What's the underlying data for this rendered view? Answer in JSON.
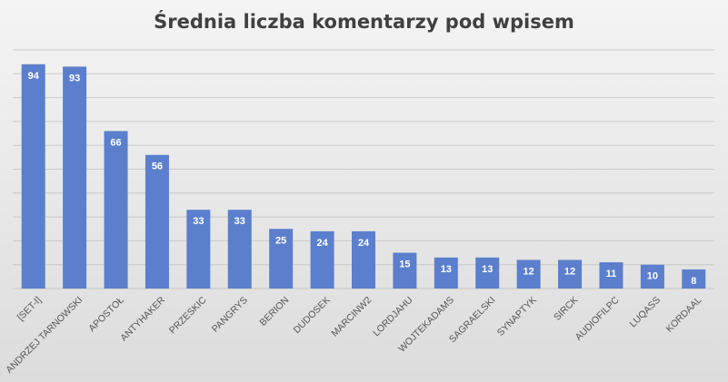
{
  "chart_data": {
    "type": "bar",
    "title": "Średnia liczba komentarzy pod wpisem",
    "categories": [
      "[SET-I]",
      "ANDRZEJ TARNOWSKI",
      "APOSTOŁ",
      "ANTYHAKER",
      "PRZESKIC",
      "PANGRYS",
      "BERION",
      "DUDOSEK",
      "MARCINW2",
      "LORDJAHU",
      "WOJTEKADAMS",
      "SAGRAELSKI",
      "SYNAPTYK",
      "SIRCK",
      "AUDIOFILPC",
      "LUQASS",
      "KORDAAL"
    ],
    "values": [
      94,
      93,
      66,
      56,
      33,
      33,
      25,
      24,
      24,
      15,
      13,
      13,
      12,
      12,
      11,
      10,
      8
    ],
    "ylim": [
      0,
      100
    ],
    "grid": true,
    "legend": "none",
    "colors": {
      "bar": "#5b7fcc",
      "value_label": "#ffffff"
    }
  }
}
